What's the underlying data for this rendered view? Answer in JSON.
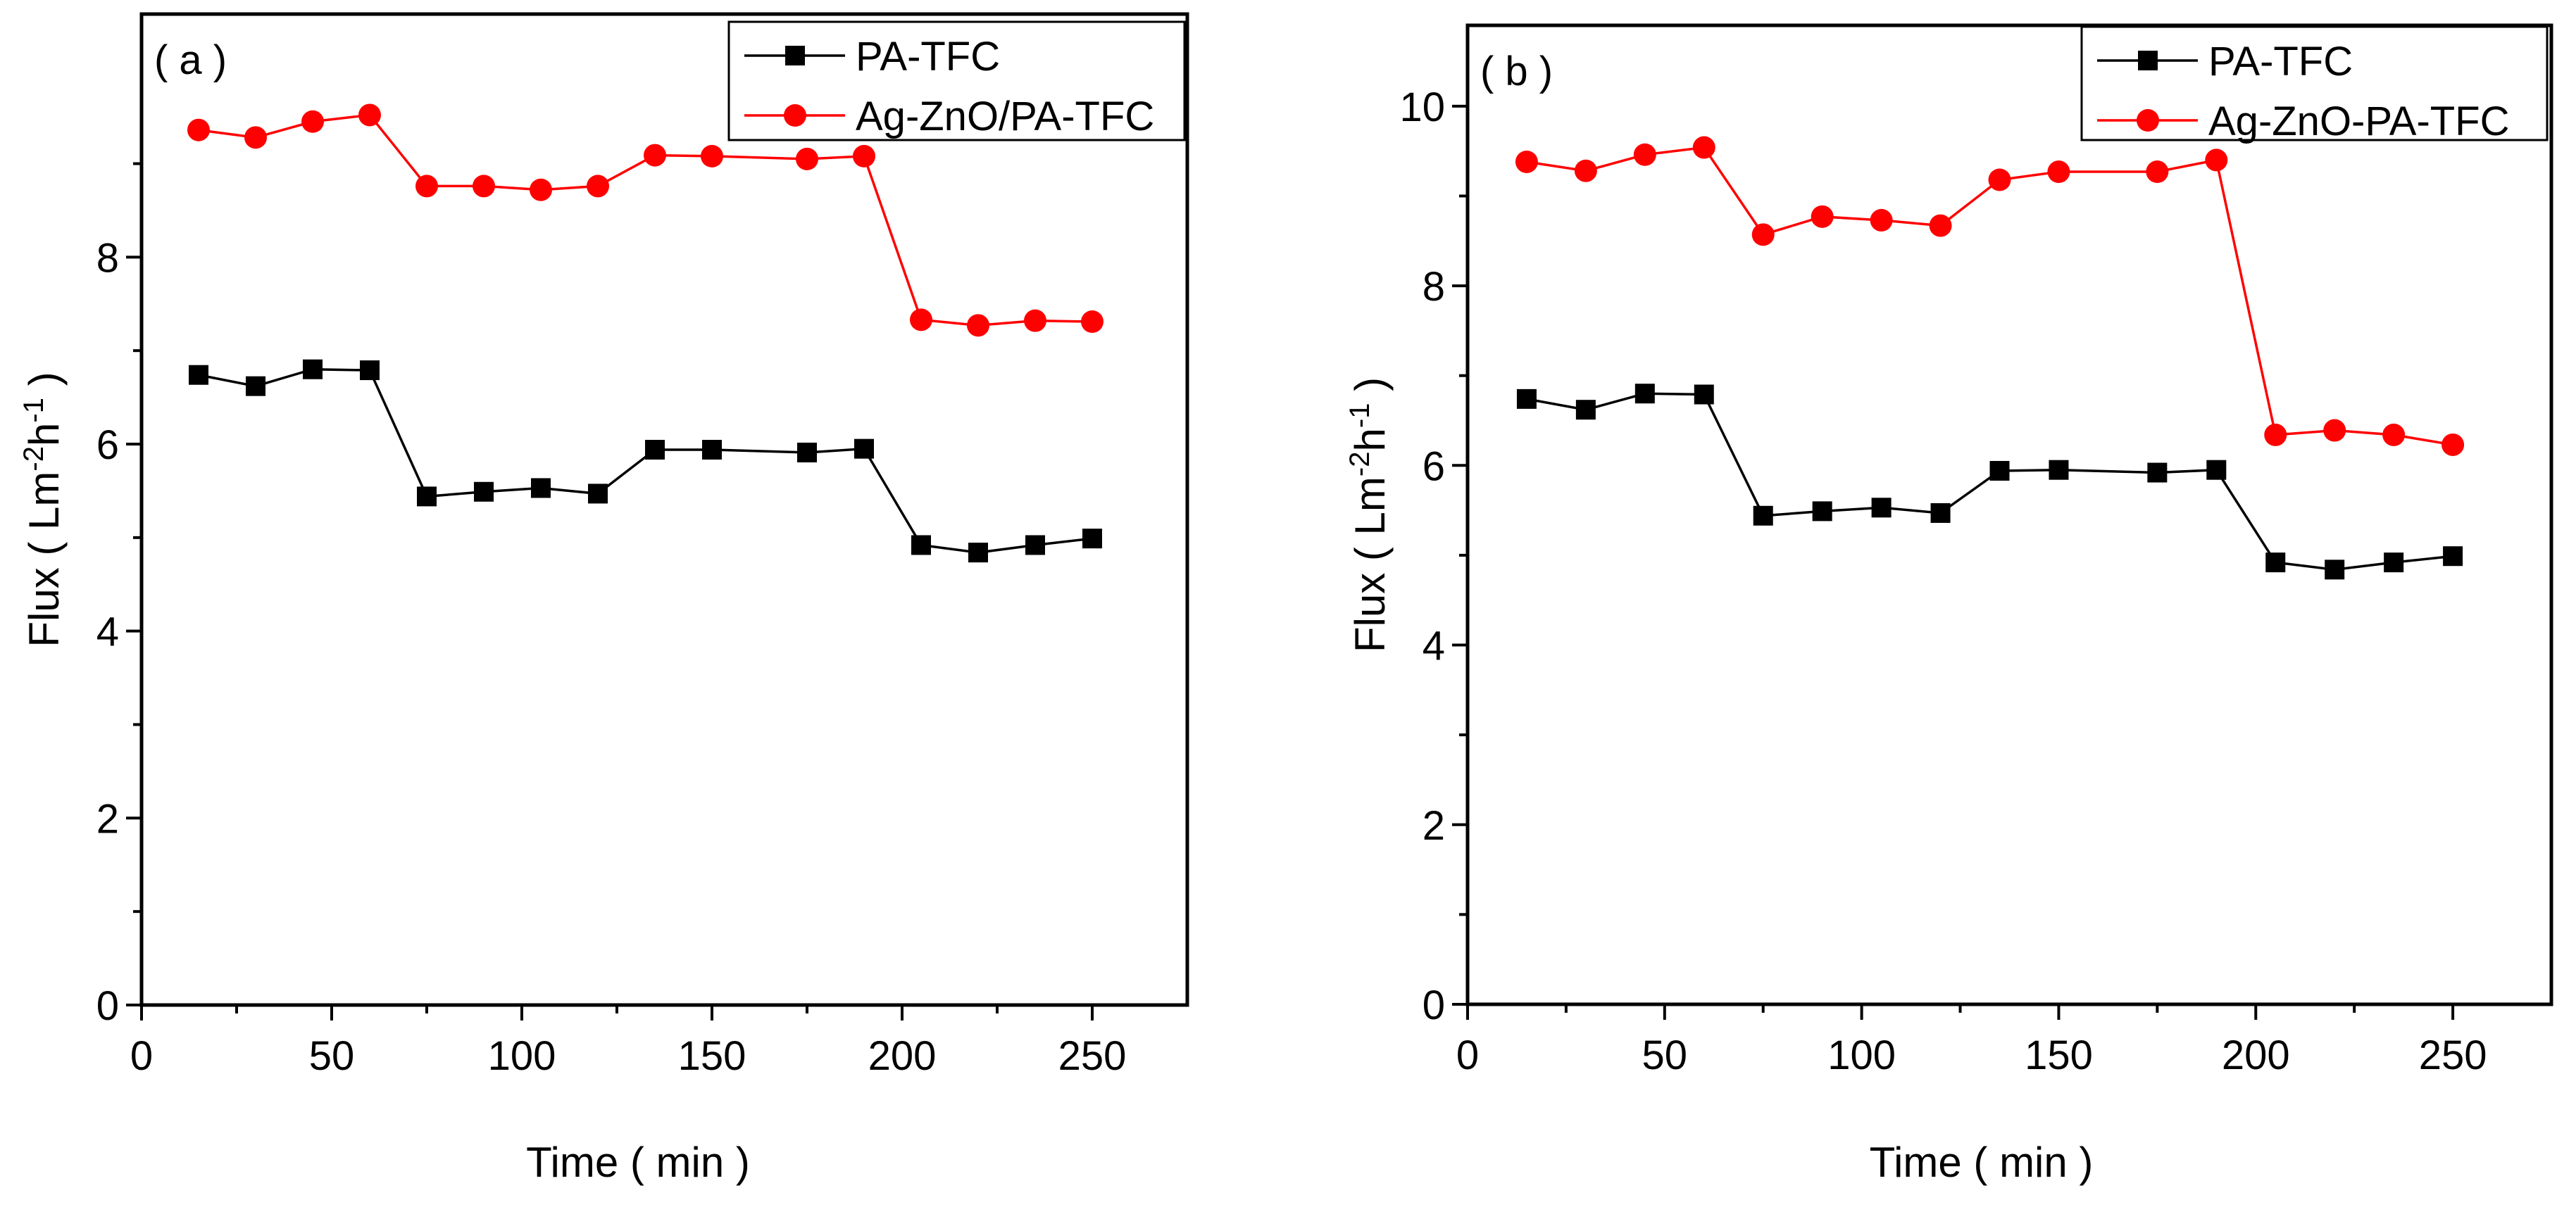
{
  "colors": {
    "series_black": "#000000",
    "series_red": "#ff0000"
  },
  "chart_data": [
    {
      "type": "line",
      "panel_label": "( a )",
      "xlabel": "Time ( min )",
      "ylabel_main": "Flux ( Lm",
      "ylabel_sup1": "-2",
      "ylabel_mid": "h",
      "ylabel_sup2": "-1",
      "ylabel_end": ")",
      "xlim": [
        0,
        275
      ],
      "ylim": [
        0,
        10.6
      ],
      "xticks": [
        0,
        50,
        100,
        150,
        200,
        250
      ],
      "yticks": [
        0,
        2,
        4,
        6,
        8
      ],
      "grid": false,
      "legend_position": "top-right",
      "x": [
        15,
        30,
        45,
        60,
        75,
        90,
        105,
        120,
        135,
        150,
        175,
        190,
        205,
        220,
        235,
        250
      ],
      "series": [
        {
          "name": "PA-TFC",
          "color": "#000000",
          "marker": "square",
          "values": [
            6.74,
            6.62,
            6.8,
            6.79,
            5.44,
            5.49,
            5.53,
            5.47,
            5.94,
            5.94,
            5.91,
            5.95,
            4.92,
            4.84,
            4.92,
            4.99
          ]
        },
        {
          "name": "Ag-ZnO/PA-TFC",
          "color": "#ff0000",
          "marker": "circle",
          "values": [
            9.36,
            9.28,
            9.45,
            9.52,
            8.76,
            8.76,
            8.72,
            8.76,
            9.09,
            9.08,
            9.05,
            9.08,
            7.33,
            7.27,
            7.32,
            7.31
          ]
        }
      ]
    },
    {
      "type": "line",
      "panel_label": "( b )",
      "xlabel": "Time ( min )",
      "ylabel_main": "Flux ( Lm",
      "ylabel_sup1": "-2",
      "ylabel_mid": "h",
      "ylabel_sup2": "-1",
      "ylabel_end": ")",
      "xlim": [
        0,
        275
      ],
      "ylim": [
        0,
        10.9
      ],
      "xticks": [
        0,
        50,
        100,
        150,
        200,
        250
      ],
      "yticks": [
        0,
        2,
        4,
        6,
        8,
        10
      ],
      "grid": false,
      "legend_position": "top-right",
      "x": [
        15,
        30,
        45,
        60,
        75,
        90,
        105,
        120,
        135,
        150,
        175,
        190,
        205,
        220,
        235,
        250
      ],
      "series": [
        {
          "name": "PA-TFC",
          "color": "#000000",
          "marker": "square",
          "values": [
            6.74,
            6.62,
            6.8,
            6.79,
            5.44,
            5.49,
            5.53,
            5.47,
            5.94,
            5.95,
            5.92,
            5.95,
            4.92,
            4.84,
            4.92,
            4.99
          ]
        },
        {
          "name": "Ag-ZnO-PA-TFC",
          "color": "#ff0000",
          "marker": "circle",
          "values": [
            9.38,
            9.28,
            9.46,
            9.54,
            8.57,
            8.77,
            8.73,
            8.67,
            9.18,
            9.27,
            9.27,
            9.4,
            6.34,
            6.39,
            6.34,
            6.23
          ]
        }
      ]
    }
  ]
}
